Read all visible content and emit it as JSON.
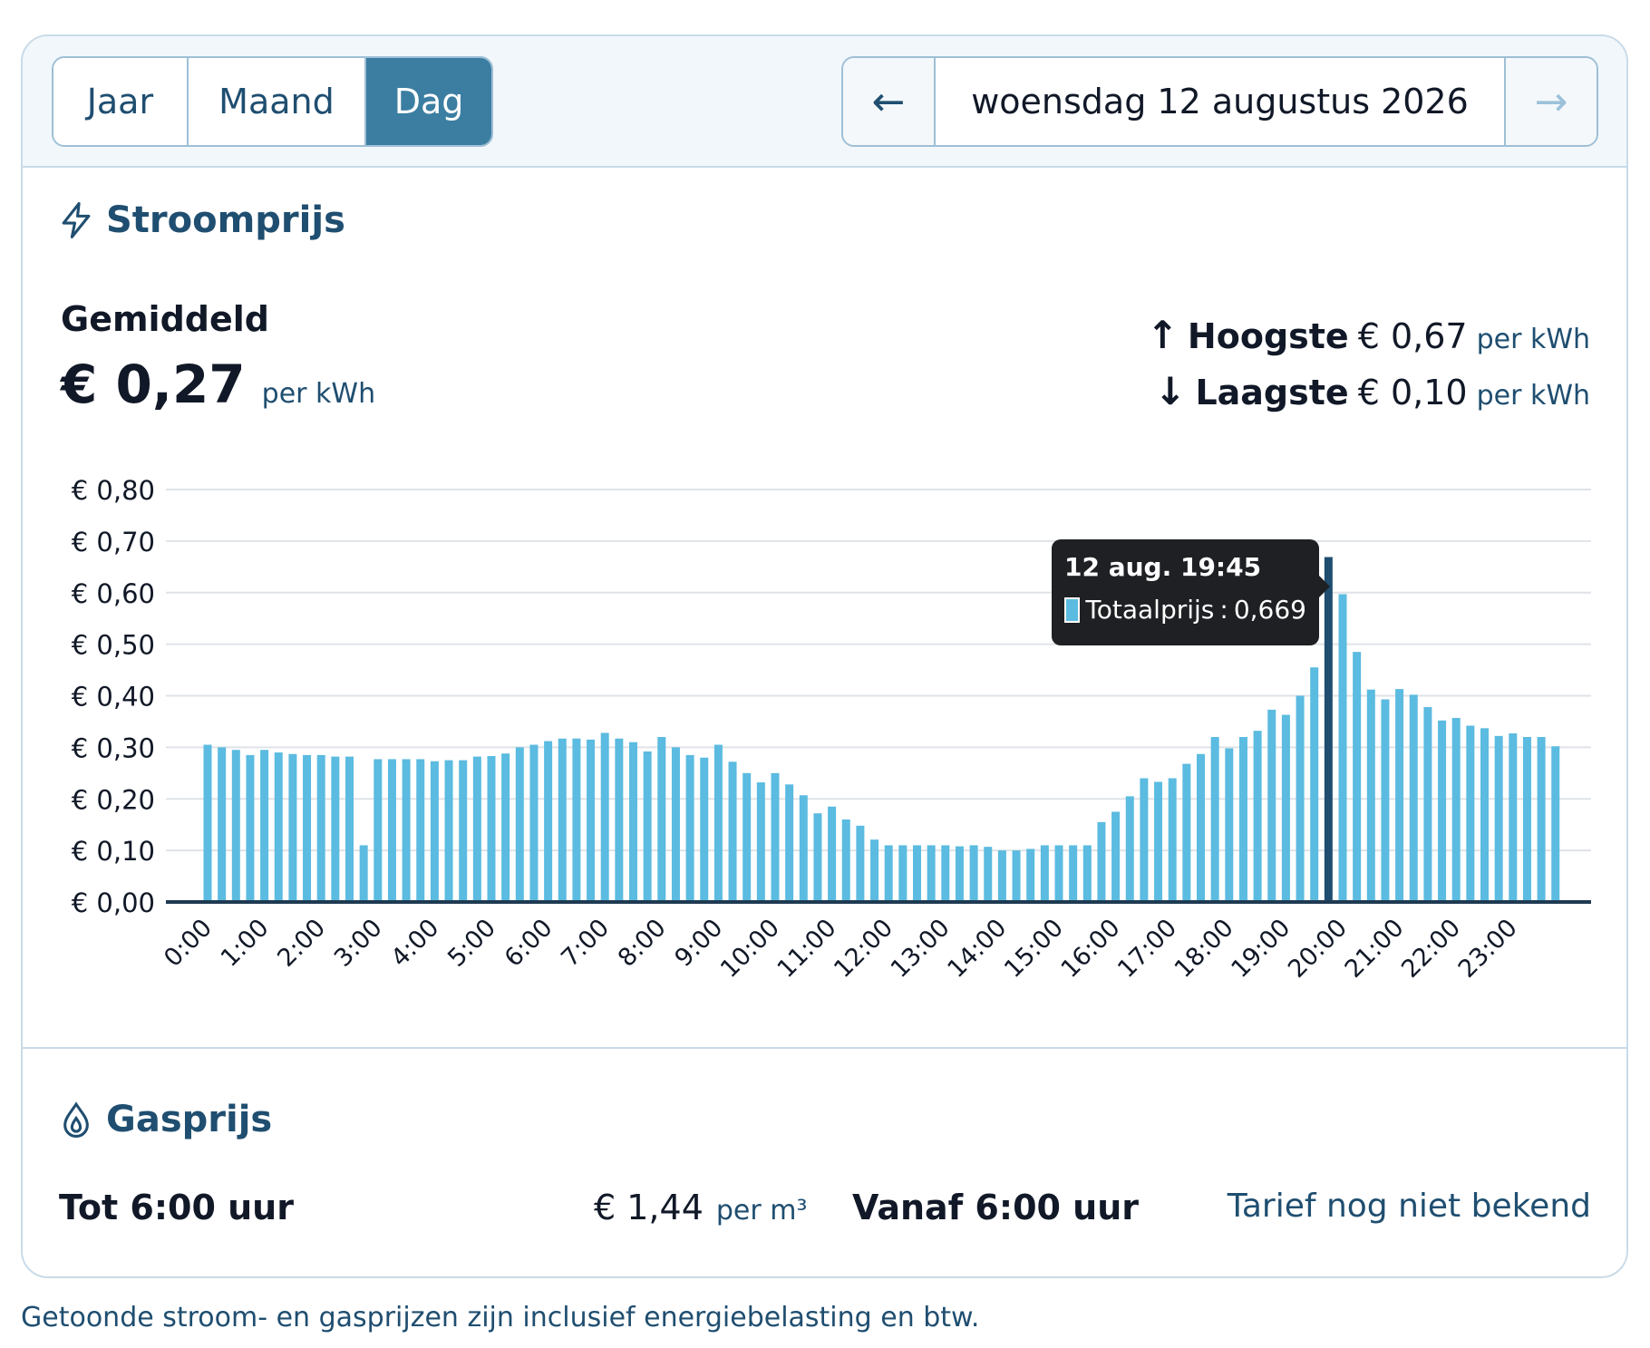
{
  "tabs": [
    {
      "label": "Jaar",
      "active": false
    },
    {
      "label": "Maand",
      "active": false
    },
    {
      "label": "Dag",
      "active": true
    }
  ],
  "date_nav": {
    "prev_icon": "arrow-left-icon",
    "date": "woensdag 12 augustus 2026",
    "next_icon": "arrow-right-icon"
  },
  "stroom": {
    "title": "Stroomprijs",
    "icon": "lightning-icon",
    "average_label": "Gemiddeld",
    "average_value": "€ 0,27",
    "unit": "per kWh",
    "highest_label": "Hoogste",
    "highest_value": "€ 0,67",
    "lowest_label": "Laagste",
    "lowest_value": "€ 0,10"
  },
  "chart_data": {
    "type": "bar",
    "y_ticks": [
      "€ 0,00",
      "€ 0,10",
      "€ 0,20",
      "€ 0,30",
      "€ 0,40",
      "€ 0,50",
      "€ 0,60",
      "€ 0,70",
      "€ 0,80"
    ],
    "ylim": [
      0,
      0.8
    ],
    "x_tick_labels": [
      "0:00",
      "1:00",
      "2:00",
      "3:00",
      "4:00",
      "5:00",
      "6:00",
      "7:00",
      "8:00",
      "9:00",
      "10:00",
      "11:00",
      "12:00",
      "13:00",
      "14:00",
      "15:00",
      "16:00",
      "17:00",
      "18:00",
      "19:00",
      "20:00",
      "21:00",
      "22:00",
      "23:00"
    ],
    "interval_minutes": 15,
    "values": [
      0.305,
      0.3,
      0.295,
      0.285,
      0.295,
      0.29,
      0.287,
      0.285,
      0.285,
      0.282,
      0.282,
      0.11,
      0.277,
      0.277,
      0.277,
      0.277,
      0.273,
      0.275,
      0.275,
      0.282,
      0.283,
      0.288,
      0.3,
      0.305,
      0.312,
      0.317,
      0.317,
      0.315,
      0.328,
      0.317,
      0.31,
      0.292,
      0.32,
      0.3,
      0.285,
      0.28,
      0.305,
      0.272,
      0.25,
      0.232,
      0.25,
      0.228,
      0.207,
      0.172,
      0.185,
      0.16,
      0.148,
      0.121,
      0.11,
      0.11,
      0.11,
      0.11,
      0.11,
      0.108,
      0.11,
      0.107,
      0.1,
      0.1,
      0.103,
      0.11,
      0.11,
      0.11,
      0.11,
      0.155,
      0.175,
      0.205,
      0.24,
      0.233,
      0.24,
      0.268,
      0.287,
      0.32,
      0.298,
      0.32,
      0.332,
      0.373,
      0.363,
      0.4,
      0.455,
      0.669,
      0.597,
      0.485,
      0.412,
      0.393,
      0.413,
      0.402,
      0.378,
      0.352,
      0.357,
      0.342,
      0.337,
      0.322,
      0.327,
      0.32,
      0.32,
      0.302
    ],
    "highlight_index": 79,
    "bar_color": "#5bbbe0",
    "highlight_color": "#1f4e70",
    "grid": true
  },
  "tooltip": {
    "title": "12 aug. 19:45",
    "series": "Totaalprijs",
    "value": "0,669"
  },
  "gas": {
    "title": "Gasprijs",
    "icon": "flame-drop-icon",
    "until_label": "Tot 6:00 uur",
    "until_value": "€ 1,44",
    "until_unit": "per m³",
    "from_label": "Vanaf 6:00 uur",
    "from_value": "Tarief nog niet bekend"
  },
  "footnote": "Getoonde stroom- en gasprijzen zijn inclusief energiebelasting en btw."
}
